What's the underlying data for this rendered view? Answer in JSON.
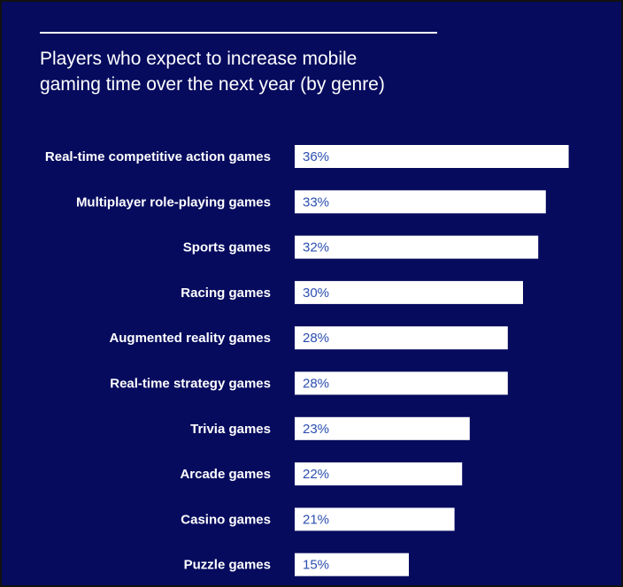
{
  "colors": {
    "background": "#060b5e",
    "bar": "#ffffff",
    "value_label": "#2b4fb0",
    "category_label": "#ffffff"
  },
  "title_lines": [
    "Players who expect to increase mobile",
    "gaming time over the next year (by genre)"
  ],
  "chart_data": {
    "type": "bar",
    "orientation": "horizontal",
    "title": "Players who expect to increase mobile gaming time over the next year (by genre)",
    "categories": [
      "Real-time competitive action games",
      "Multiplayer role-playing games",
      "Sports games",
      "Racing games",
      "Augmented reality games",
      "Real-time strategy games",
      "Trivia games",
      "Arcade games",
      "Casino games",
      "Puzzle games"
    ],
    "values": [
      36,
      33,
      32,
      30,
      28,
      28,
      23,
      22,
      21,
      15
    ],
    "value_labels": [
      "36%",
      "33%",
      "32%",
      "30%",
      "28%",
      "28%",
      "23%",
      "22%",
      "21%",
      "15%"
    ],
    "unit": "%",
    "grid": false,
    "legend": "none"
  }
}
